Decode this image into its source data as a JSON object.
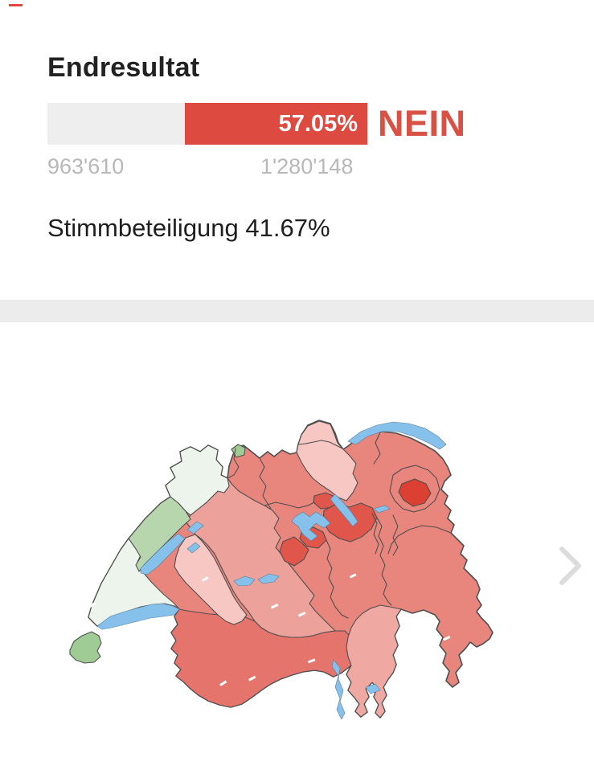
{
  "page": {
    "background": "#ffffff",
    "top_dash_color": "#e2473c"
  },
  "result": {
    "title": "Endresultat",
    "no_label": "NEIN",
    "no_percent": 57.05,
    "no_percent_label": "57.05%",
    "yes_count": "963'610",
    "no_count": "1'280'148",
    "turnout_label": "Stimmbeteiligung 41.67%",
    "bar": {
      "yes_color": "#eeeeee",
      "no_color": "#dd4a40",
      "count_color": "#b8b8b8",
      "nein_color": "#d85145"
    }
  },
  "divider": {
    "color": "#ececec"
  },
  "map": {
    "description": "Switzerland map with cantons shaded by referendum result (red = NEIN, green = JA)",
    "colors": {
      "salmon": "#e8857c",
      "deep_salmon": "#e5756c",
      "pale_pink": "#f6c7c3",
      "medium_pink": "#eca19a",
      "ticino_pink": "#efa9a2",
      "dark_red": "#e0564a",
      "darkest_red": "#dc4033",
      "pale_green": "#edf4ec",
      "medium_green": "#b7d6ae",
      "green": "#9fcb95",
      "lake": "#85c1ea",
      "border": "#4f4f4f"
    },
    "canton_fill": {
      "base_no": "#e8857c",
      "vd": "#edf4ec",
      "ju": "#edf4ec",
      "ne": "#b7d6ae",
      "ge": "#9fcb95",
      "bs": "#9fcb95",
      "fr": "#f6c7c3",
      "zh": "#f6c7c3",
      "sh": "#f6c7c3",
      "be": "#eca19a",
      "ti": "#efa9a2",
      "vs": "#e5756c",
      "sz": "#e0564a",
      "zg": "#e0564a",
      "ow": "#e0564a",
      "nw": "#e0564a",
      "ai": "#dc4033"
    },
    "chevron": {
      "direction": "right",
      "color": "#dcdcdc"
    }
  }
}
